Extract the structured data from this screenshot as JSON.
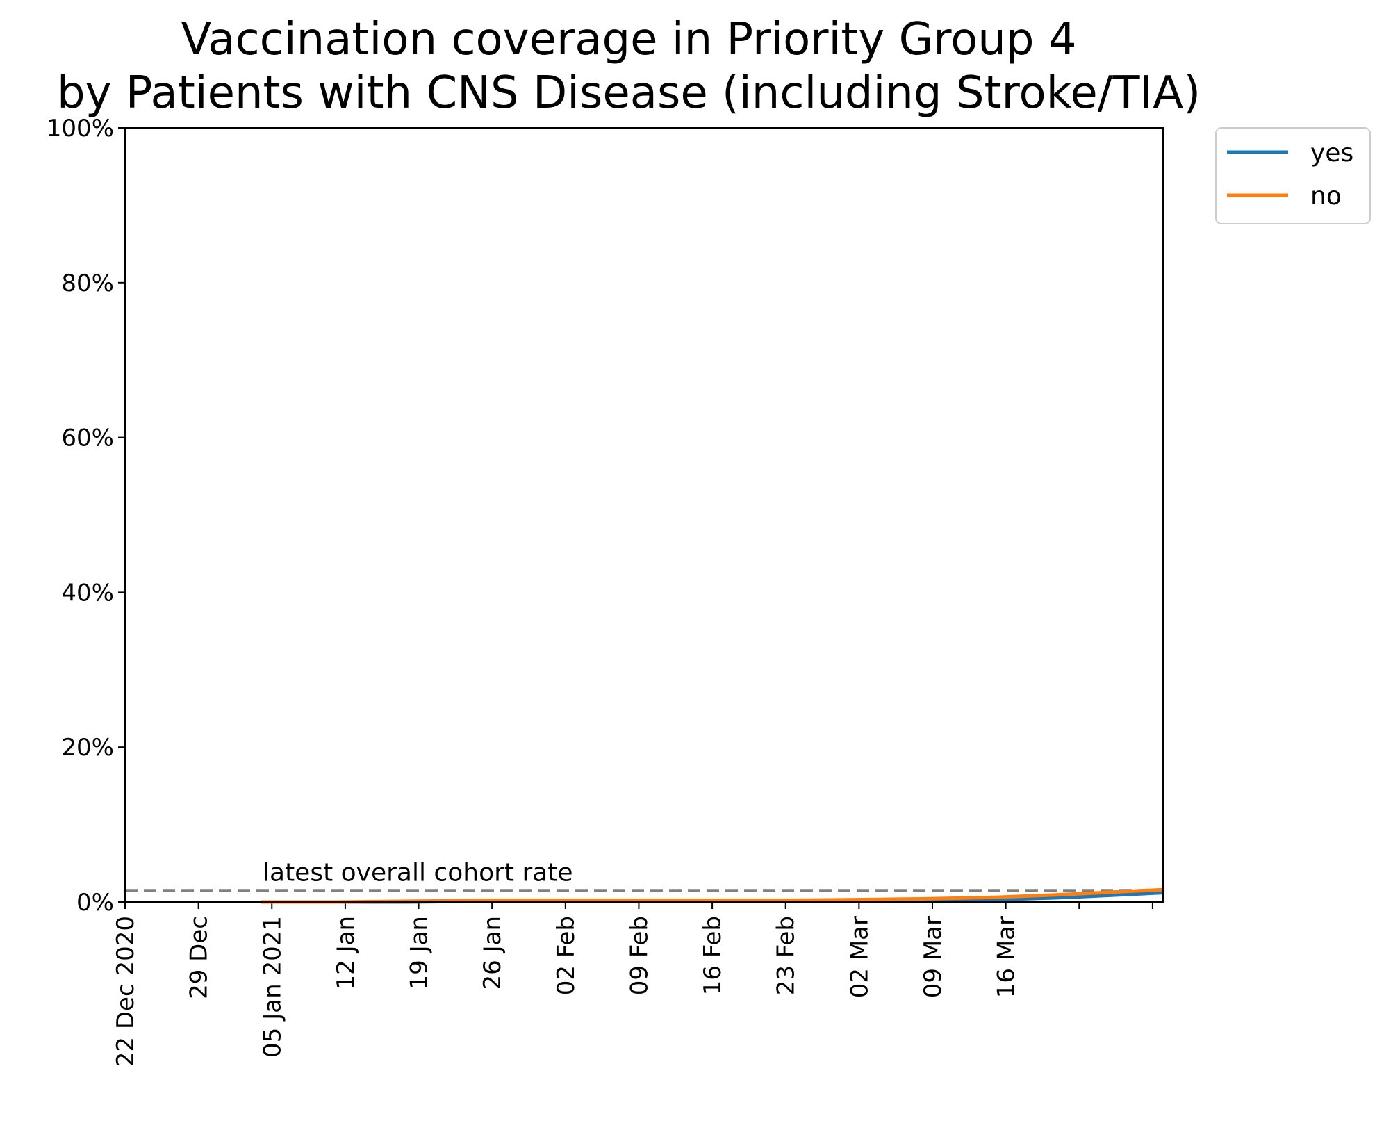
{
  "chart_data": {
    "type": "line",
    "title_line1": "Vaccination coverage in Priority Group 4",
    "title_line2": "by Patients with CNS Disease (including Stroke/TIA)",
    "xlabel": "",
    "ylabel": "",
    "ylim": [
      0,
      100
    ],
    "xlim": [
      "2020-12-22",
      "2021-03-31"
    ],
    "y_ticks": [
      {
        "value": 0,
        "label": "0%"
      },
      {
        "value": 20,
        "label": "20%"
      },
      {
        "value": 40,
        "label": "40%"
      },
      {
        "value": 60,
        "label": "60%"
      },
      {
        "value": 80,
        "label": "80%"
      },
      {
        "value": 100,
        "label": "100%"
      }
    ],
    "x_ticks": [
      {
        "date": "2020-12-22",
        "label": "22 Dec 2020"
      },
      {
        "date": "2020-12-29",
        "label": "29 Dec"
      },
      {
        "date": "2021-01-05",
        "label": "05 Jan 2021"
      },
      {
        "date": "2021-01-12",
        "label": "12 Jan"
      },
      {
        "date": "2021-01-19",
        "label": "19 Jan"
      },
      {
        "date": "2021-01-26",
        "label": "26 Jan"
      },
      {
        "date": "2021-02-02",
        "label": "02 Feb"
      },
      {
        "date": "2021-02-09",
        "label": "09 Feb"
      },
      {
        "date": "2021-02-16",
        "label": "16 Feb"
      },
      {
        "date": "2021-02-23",
        "label": "23 Feb"
      },
      {
        "date": "2021-03-02",
        "label": "02 Mar"
      },
      {
        "date": "2021-03-09",
        "label": "09 Mar"
      },
      {
        "date": "2021-03-16",
        "label": "16 Mar"
      },
      {
        "date": "2021-03-23",
        "label": ""
      },
      {
        "date": "2021-03-30",
        "label": ""
      }
    ],
    "x": [
      "2021-01-04",
      "2021-01-11",
      "2021-01-18",
      "2021-01-25",
      "2021-02-01",
      "2021-02-08",
      "2021-02-15",
      "2021-02-22",
      "2021-03-01",
      "2021-03-08",
      "2021-03-15",
      "2021-03-22",
      "2021-03-31"
    ],
    "series": [
      {
        "name": "yes",
        "color": "#1f77b4",
        "values": [
          0.0,
          0.0,
          0.0,
          0.1,
          0.1,
          0.1,
          0.1,
          0.1,
          0.1,
          0.2,
          0.3,
          0.6,
          1.2
        ]
      },
      {
        "name": "no",
        "color": "#ff7f0e",
        "values": [
          0.0,
          0.0,
          0.1,
          0.2,
          0.2,
          0.2,
          0.2,
          0.2,
          0.3,
          0.4,
          0.6,
          1.0,
          1.6
        ]
      }
    ],
    "reference_line": {
      "value": 1.5,
      "label": "latest overall cohort rate",
      "color": "#808080",
      "style": "dashed"
    },
    "legend_position": "outside top-right",
    "grid": false
  }
}
